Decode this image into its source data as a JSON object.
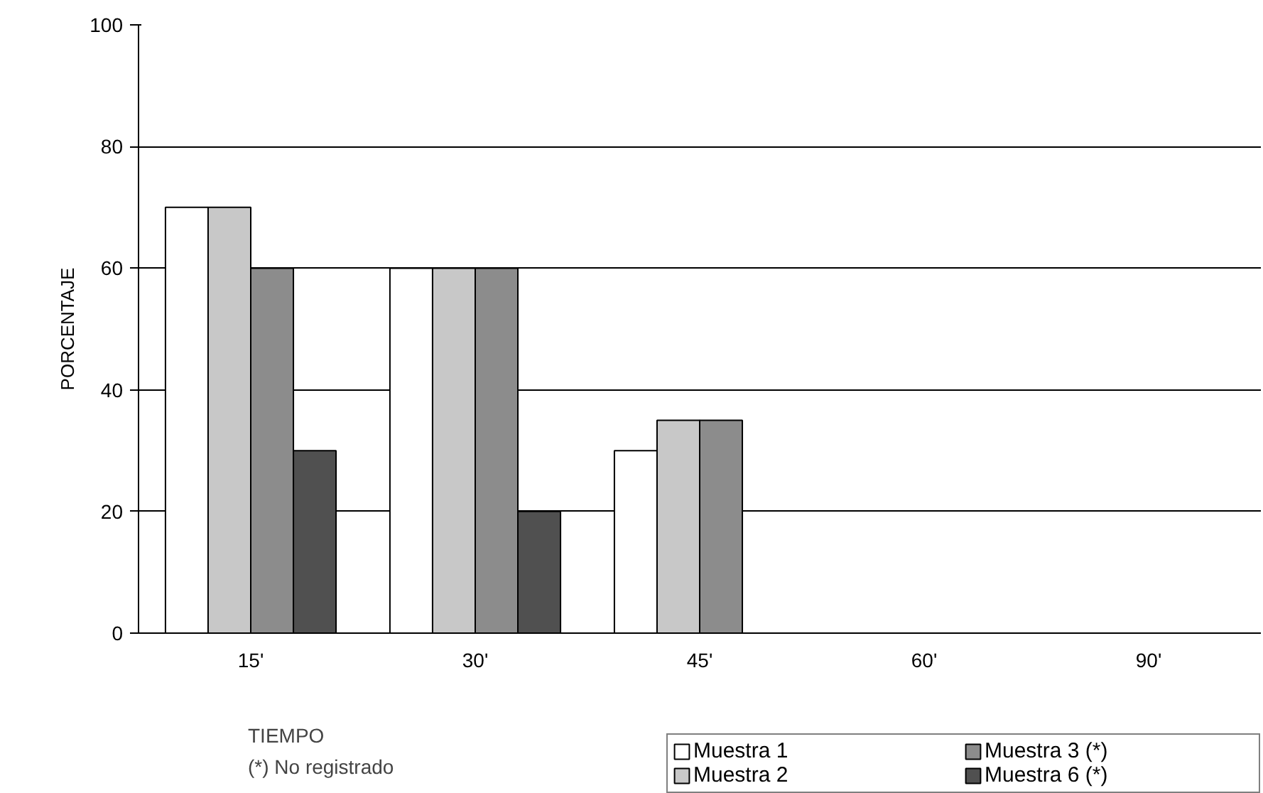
{
  "chart_data": {
    "type": "bar",
    "ylabel": "PORCENTAJE",
    "xlabel": "TIEMPO",
    "categories": [
      "15'",
      "30'",
      "45'",
      "60'",
      "90'"
    ],
    "series": [
      {
        "name": "Muestra 1",
        "color": "#ffffff",
        "values": [
          70,
          60,
          30,
          null,
          null
        ]
      },
      {
        "name": "Muestra 2",
        "color": "#c8c8c8",
        "values": [
          70,
          60,
          35,
          null,
          null
        ]
      },
      {
        "name": "Muestra 3 (*)",
        "color": "#8c8c8c",
        "values": [
          60,
          60,
          35,
          null,
          null
        ]
      },
      {
        "name": "Muestra 6 (*)",
        "color": "#505050",
        "values": [
          30,
          20,
          null,
          null,
          null
        ]
      }
    ],
    "ylim": [
      0,
      100
    ],
    "yticks": [
      0,
      20,
      40,
      60,
      80,
      100
    ],
    "grid": "y",
    "legend": "bottom right",
    "annotations": [
      "(*) No registrado"
    ]
  }
}
